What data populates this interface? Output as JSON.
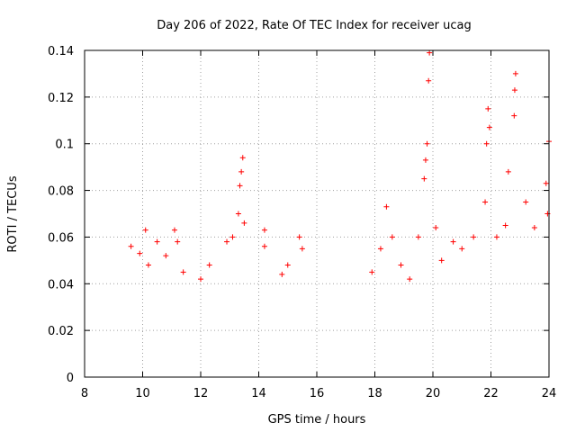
{
  "chart_data": {
    "type": "scatter",
    "title": "Day 206 of 2022, Rate Of TEC Index for receiver ucag",
    "xlabel": "GPS time / hours",
    "ylabel": "ROTI / TECUs",
    "xlim": [
      8,
      24
    ],
    "ylim": [
      0,
      0.14
    ],
    "xticks": [
      8,
      10,
      12,
      14,
      16,
      18,
      20,
      22,
      24
    ],
    "xtick_labels": [
      "8",
      "10",
      "12",
      "14",
      "16",
      "18",
      "20",
      "22",
      "24"
    ],
    "yticks": [
      0,
      0.02,
      0.04,
      0.06,
      0.08,
      0.1,
      0.12,
      0.14
    ],
    "ytick_labels": [
      "0",
      "0.02",
      "0.04",
      "0.06",
      "0.08",
      "0.1",
      "0.12",
      "0.14"
    ],
    "grid": true,
    "marker": "plus",
    "color": "#ff0000",
    "points": [
      [
        9.6,
        0.056
      ],
      [
        9.9,
        0.053
      ],
      [
        10.1,
        0.063
      ],
      [
        10.2,
        0.048
      ],
      [
        10.5,
        0.058
      ],
      [
        10.8,
        0.052
      ],
      [
        11.1,
        0.063
      ],
      [
        11.2,
        0.058
      ],
      [
        11.4,
        0.045
      ],
      [
        12.0,
        0.042
      ],
      [
        12.3,
        0.048
      ],
      [
        12.9,
        0.058
      ],
      [
        13.1,
        0.06
      ],
      [
        13.3,
        0.07
      ],
      [
        13.35,
        0.082
      ],
      [
        13.4,
        0.088
      ],
      [
        13.45,
        0.094
      ],
      [
        13.5,
        0.066
      ],
      [
        14.2,
        0.063
      ],
      [
        14.2,
        0.056
      ],
      [
        14.8,
        0.044
      ],
      [
        15.0,
        0.048
      ],
      [
        15.4,
        0.06
      ],
      [
        15.5,
        0.055
      ],
      [
        17.9,
        0.045
      ],
      [
        18.2,
        0.055
      ],
      [
        18.4,
        0.073
      ],
      [
        18.6,
        0.06
      ],
      [
        18.9,
        0.048
      ],
      [
        19.2,
        0.042
      ],
      [
        19.5,
        0.06
      ],
      [
        19.7,
        0.085
      ],
      [
        19.75,
        0.093
      ],
      [
        19.8,
        0.1
      ],
      [
        19.85,
        0.127
      ],
      [
        19.88,
        0.139
      ],
      [
        20.1,
        0.064
      ],
      [
        20.3,
        0.05
      ],
      [
        20.7,
        0.058
      ],
      [
        21.0,
        0.055
      ],
      [
        21.4,
        0.06
      ],
      [
        21.8,
        0.075
      ],
      [
        21.85,
        0.1
      ],
      [
        21.9,
        0.115
      ],
      [
        21.95,
        0.107
      ],
      [
        22.2,
        0.06
      ],
      [
        22.5,
        0.065
      ],
      [
        22.6,
        0.088
      ],
      [
        22.8,
        0.112
      ],
      [
        22.82,
        0.123
      ],
      [
        22.85,
        0.13
      ],
      [
        23.2,
        0.075
      ],
      [
        23.5,
        0.064
      ],
      [
        23.9,
        0.083
      ],
      [
        24.0,
        0.101
      ],
      [
        23.95,
        0.07
      ]
    ]
  }
}
